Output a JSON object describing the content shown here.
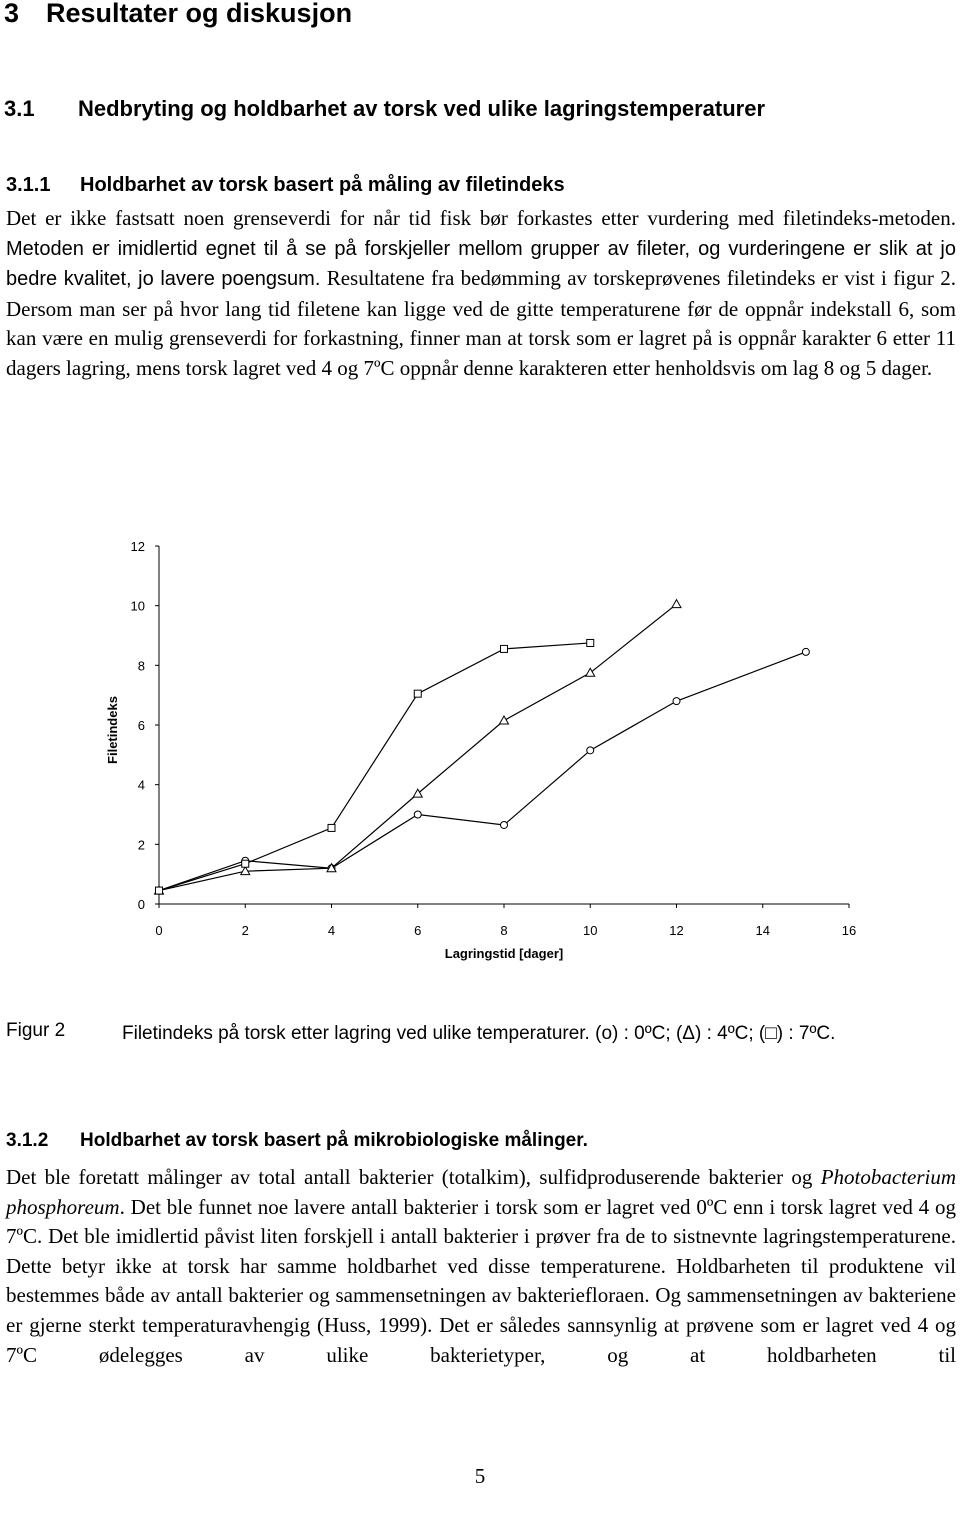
{
  "heading": {
    "number": "3",
    "title": "Resultater og diskusjon"
  },
  "section": {
    "number": "3.1",
    "title": "Nedbryting og holdbarhet av torsk ved ulike lagringstemperaturer"
  },
  "subsection1": {
    "number": "3.1.1",
    "title": "Holdbarhet av torsk basert på måling av filetindeks"
  },
  "paragraph1": [
    "Det er ikke fastsatt noen grenseverdi for når tid fisk bør forkastes etter vurdering med filetindeks-metoden. ",
    "Metoden er imidlertid egnet til å se på forskjeller mellom grupper av fileter, og vurderingene er slik at jo bedre kvalitet, jo lavere poengsum.",
    " Resultatene fra bedømming av torskeprøvenes filetindeks er vist i figur 2. Dersom man ser på hvor lang tid filetene kan ligge ved de gitte temperaturene før de oppnår indekstall 6, som kan være en mulig grenseverdi for forkastning, finner man at torsk som er lagret på is oppnår karakter 6 etter 11 dagers lagring, mens torsk lagret ved 4 og 7ºC oppnår denne karakteren etter henholdsvis om lag 8 og 5 dager."
  ],
  "chart_data": {
    "type": "line",
    "x_label": "Lagringstid [dager]",
    "y_label": "Filetindeks",
    "xlim": [
      0,
      16
    ],
    "xticks": [
      0,
      2,
      4,
      6,
      8,
      10,
      12,
      14,
      16
    ],
    "ylim": [
      0,
      12
    ],
    "yticks": [
      0,
      2,
      4,
      6,
      8,
      10,
      12
    ],
    "grid": false,
    "series": [
      {
        "marker": "circle",
        "color": "#000000",
        "x": [
          0,
          2,
          4,
          6,
          8,
          10,
          12,
          15
        ],
        "values": [
          0.45,
          1.45,
          1.2,
          3.0,
          2.65,
          5.15,
          6.8,
          8.45
        ]
      },
      {
        "marker": "triangle",
        "color": "#000000",
        "x": [
          0,
          2,
          4,
          6,
          8,
          10,
          12
        ],
        "values": [
          0.45,
          1.1,
          1.2,
          3.7,
          6.15,
          7.75,
          10.05
        ]
      },
      {
        "marker": "square",
        "color": "#000000",
        "x": [
          0,
          2,
          4,
          6,
          8,
          10
        ],
        "values": [
          0.45,
          1.35,
          2.55,
          7.05,
          8.55,
          8.75
        ]
      }
    ]
  },
  "caption": {
    "label": "Figur 2",
    "text": "Filetindeks på torsk etter lagring ved ulike temperaturer. (o) : 0ºC; (Δ) : 4ºC; (□) : 7ºC."
  },
  "subsection2": {
    "number": "3.1.2",
    "title": "Holdbarhet av torsk basert på mikrobiologiske målinger."
  },
  "paragraph2": [
    "Det ble foretatt målinger av total antall bakterier (totalkim), sulfidproduserende bakterier og ",
    "Photobacterium phosphoreum",
    ". Det ble funnet noe lavere antall bakterier i torsk som er lagret ved 0ºC enn i torsk lagret ved 4 og 7ºC. Det ble imidlertid påvist liten forskjell i antall bakterier i prøver fra de to sistnevnte lagringstemperaturene. Dette betyr ikke at torsk har samme holdbarhet ved disse temperaturene. Holdbarheten til produktene vil bestemmes både av antall bakterier og sammensetningen av bakteriefloraen. Og sammensetningen av bakteriene er gjerne sterkt temperaturavhengig (Huss, 1999). Det er således sannsynlig at prøvene som er lagret ved 4 og 7ºC ødelegges av ulike bakterietyper, og at holdbarheten til"
  ],
  "page_number": "5"
}
